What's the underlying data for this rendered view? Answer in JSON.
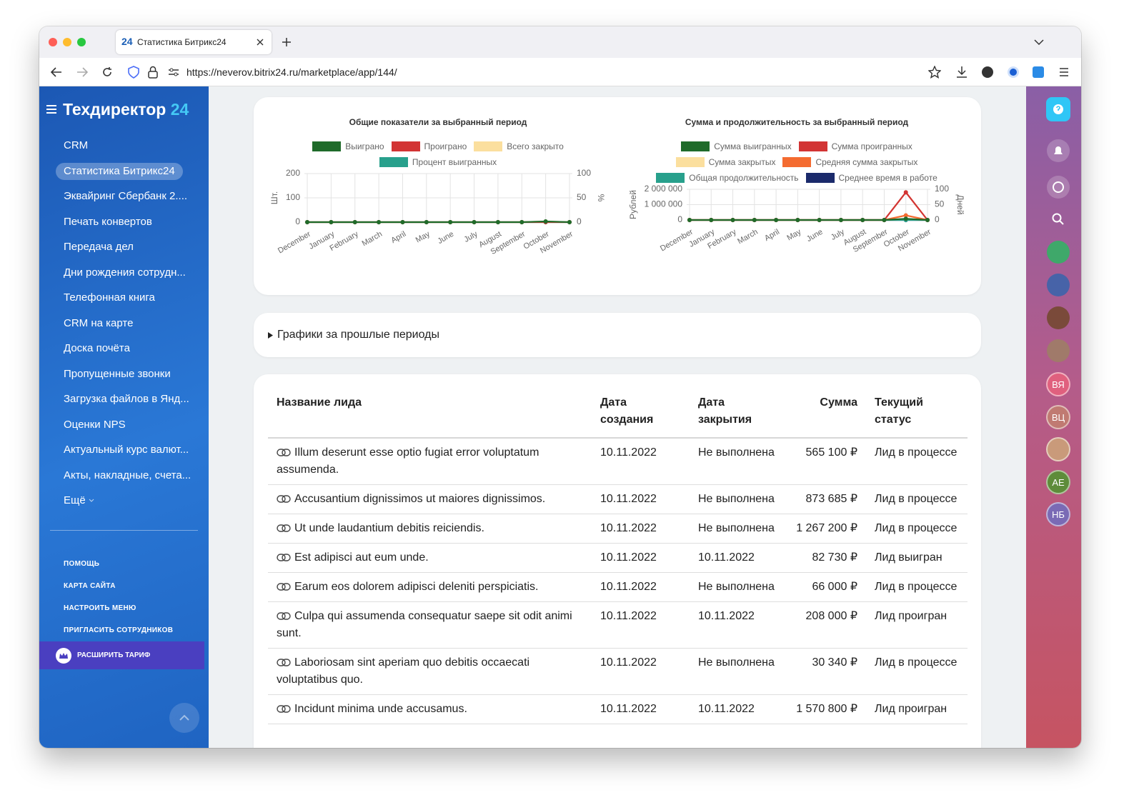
{
  "browser": {
    "tab_icon": "24",
    "tab_title": "Статистика Битрикс24",
    "url": "https://neverov.bitrix24.ru/marketplace/app/144/"
  },
  "sidebar": {
    "title": "Техдиректор",
    "title_accent": "24",
    "menu": [
      "CRM",
      "Статистика Битрикс24",
      "Эквайринг Сбербанк 2....",
      "Печать конвертов",
      "Передача дел",
      "Дни рождения сотрудн...",
      "Телефонная книга",
      "CRM на карте",
      "Доска почёта",
      "Пропущенные звонки",
      "Загрузка файлов в Янд...",
      "Оценки NPS",
      "Актуальный курс валют...",
      "Акты, накладные, счета..."
    ],
    "active": 1,
    "more": "Ещё",
    "links": [
      "ПОМОЩЬ",
      "КАРТА САЙТА",
      "НАСТРОИТЬ МЕНЮ",
      "ПРИГЛАСИТЬ СОТРУДНИКОВ"
    ],
    "upgrade": "РАСШИРИТЬ ТАРИФ"
  },
  "chart_data": [
    {
      "type": "line",
      "title": "Общие показатели за выбранный период",
      "ylabel": "Шт.",
      "y2label": "%",
      "categories": [
        "December",
        "January",
        "February",
        "March",
        "April",
        "May",
        "June",
        "July",
        "August",
        "September",
        "October",
        "November"
      ],
      "ylim": [
        0,
        200
      ],
      "yticks": [
        0,
        100,
        200
      ],
      "y2lim": [
        0,
        100
      ],
      "y2ticks": [
        0,
        50,
        100
      ],
      "grid": true,
      "series": [
        {
          "name": "Выиграно",
          "color": "#1f6b2a",
          "values": [
            0,
            0,
            0,
            0,
            0,
            0,
            0,
            0,
            0,
            0,
            3,
            0
          ]
        },
        {
          "name": "Проиграно",
          "color": "#d23434",
          "values": [
            0,
            0,
            0,
            0,
            0,
            0,
            0,
            0,
            0,
            0,
            0,
            0
          ]
        },
        {
          "name": "Всего закрыто",
          "color": "#fbdf9e",
          "values": [
            0,
            0,
            0,
            0,
            0,
            0,
            0,
            0,
            0,
            0,
            3,
            0
          ]
        },
        {
          "name": "Процент выигранных",
          "color": "#28a08c",
          "axis": "y2",
          "values": [
            0,
            0,
            0,
            0,
            0,
            0,
            0,
            0,
            0,
            0,
            0,
            0
          ]
        }
      ]
    },
    {
      "type": "line",
      "title": "Сумма и продолжительность за выбранный период",
      "ylabel": "Рублей",
      "y2label": "Дней",
      "categories": [
        "December",
        "January",
        "February",
        "March",
        "April",
        "May",
        "June",
        "July",
        "August",
        "September",
        "October",
        "November"
      ],
      "ylim": [
        0,
        2000000
      ],
      "yticks": [
        0,
        {
          "value": 1000000,
          "label": "1 000 000"
        },
        {
          "value": 2000000,
          "label": "2 000 000"
        }
      ],
      "y2lim": [
        0,
        100
      ],
      "y2ticks": [
        0,
        50,
        100
      ],
      "grid": true,
      "series": [
        {
          "name": "Сумма выигранных",
          "color": "#1f6b2a",
          "values": [
            0,
            0,
            0,
            0,
            0,
            0,
            0,
            0,
            0,
            0,
            80000,
            0
          ]
        },
        {
          "name": "Сумма проигранных",
          "color": "#d23434",
          "values": [
            0,
            0,
            0,
            0,
            0,
            0,
            0,
            0,
            0,
            0,
            1800000,
            0
          ]
        },
        {
          "name": "Сумма закрытых",
          "color": "#fbdf9e",
          "values": [
            0,
            0,
            0,
            0,
            0,
            0,
            0,
            0,
            0,
            0,
            1800000,
            0
          ]
        },
        {
          "name": "Средняя сумма закрытых",
          "color": "#f46b30",
          "values": [
            0,
            0,
            0,
            0,
            0,
            0,
            0,
            0,
            0,
            0,
            300000,
            0
          ]
        },
        {
          "name": "Общая продолжительность",
          "color": "#28a08c",
          "axis": "y2",
          "values": [
            0,
            0,
            0,
            0,
            0,
            0,
            0,
            0,
            0,
            0,
            0,
            0
          ]
        },
        {
          "name": "Среднее время в работе",
          "color": "#1b2a6b",
          "axis": "y2",
          "values": [
            0,
            0,
            0,
            0,
            0,
            0,
            0,
            0,
            0,
            0,
            0,
            0
          ]
        }
      ]
    }
  ],
  "past_periods": "Графики за прошлые периоды",
  "table": {
    "headers": [
      "Название лида",
      "Дата создания",
      "Дата закрытия",
      "Сумма",
      "Текущий статус"
    ],
    "rows": [
      [
        "Illum deserunt esse optio fugiat error voluptatum assumenda.",
        "10.11.2022",
        "Не выполнена",
        "565 100 ₽",
        "Лид в процессе"
      ],
      [
        "Accusantium dignissimos ut maiores dignissimos.",
        "10.11.2022",
        "Не выполнена",
        "873 685 ₽",
        "Лид в процессе"
      ],
      [
        "Ut unde laudantium debitis reiciendis.",
        "10.11.2022",
        "Не выполнена",
        "1 267 200 ₽",
        "Лид в процессе"
      ],
      [
        "Est adipisci aut eum unde.",
        "10.11.2022",
        "10.11.2022",
        "82 730 ₽",
        "Лид выигран"
      ],
      [
        "Earum eos dolorem adipisci deleniti perspiciatis.",
        "10.11.2022",
        "Не выполнена",
        "66 000 ₽",
        "Лид в процессе"
      ],
      [
        "Culpa qui assumenda consequatur saepe sit odit animi sunt.",
        "10.11.2022",
        "10.11.2022",
        "208 000 ₽",
        "Лид проигран"
      ],
      [
        "Laboriosam sint aperiam quo debitis occaecati voluptatibus quo.",
        "10.11.2022",
        "Не выполнена",
        "30 340 ₽",
        "Лид в процессе"
      ],
      [
        "Incidunt minima unde accusamus.",
        "10.11.2022",
        "10.11.2022",
        "1 570 800 ₽",
        "Лид проигран"
      ]
    ]
  },
  "right_bar": {
    "avatars": [
      "ВЯ",
      "ВЦ",
      "АЕ",
      "НБ"
    ]
  }
}
